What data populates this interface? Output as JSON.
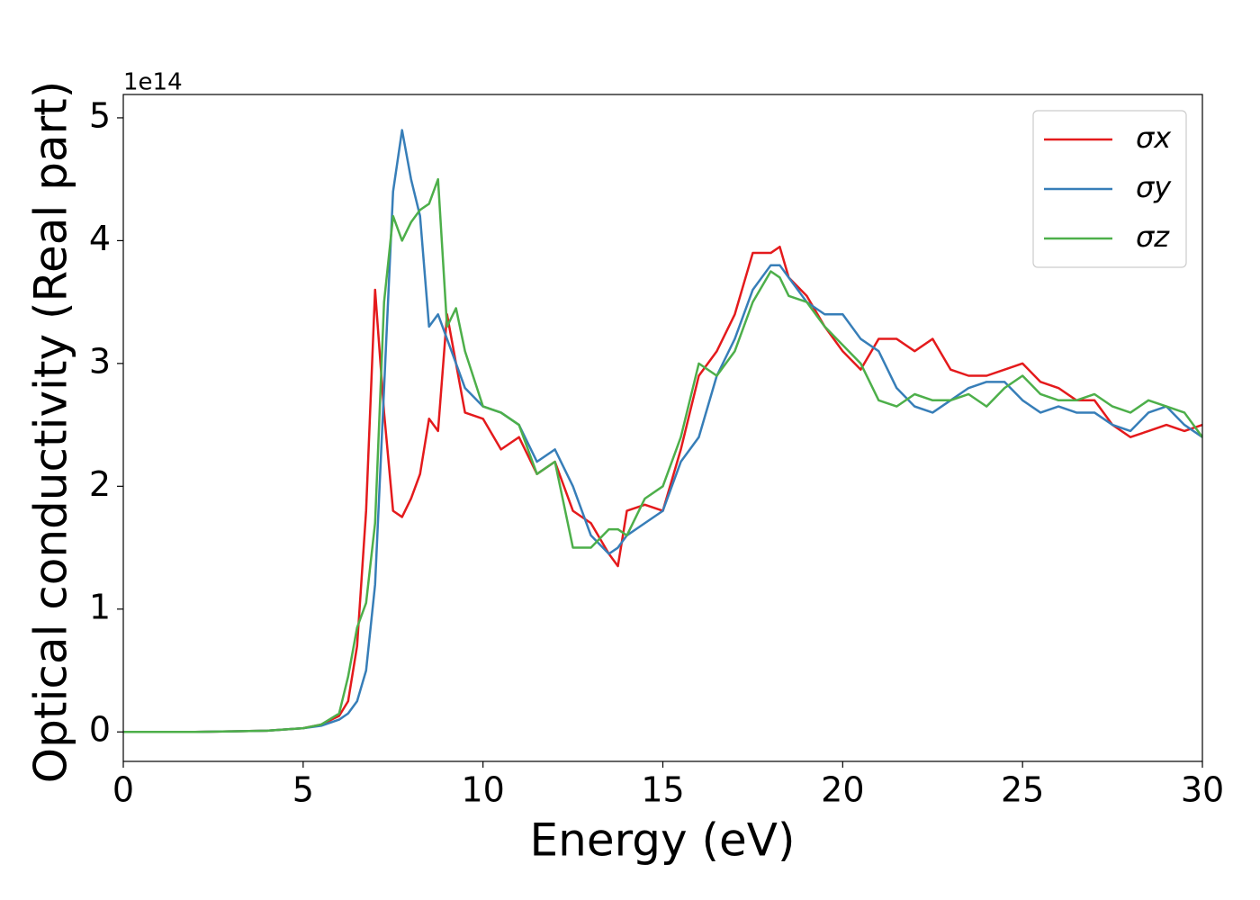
{
  "chart_data": {
    "type": "line",
    "xlabel": "Energy (eV)",
    "ylabel": "Optical conductivity (Real part)",
    "y_offset_label": "1e14",
    "x": [
      0,
      1,
      2,
      3,
      4,
      5,
      5.5,
      6,
      6.25,
      6.5,
      6.75,
      7,
      7.25,
      7.5,
      7.75,
      8,
      8.25,
      8.5,
      8.75,
      9,
      9.25,
      9.5,
      10,
      10.5,
      11,
      11.5,
      12,
      12.5,
      13,
      13.5,
      13.75,
      14,
      14.5,
      15,
      15.5,
      16,
      16.5,
      17,
      17.5,
      18,
      18.25,
      18.5,
      19,
      19.5,
      20,
      20.5,
      21,
      21.5,
      22,
      22.5,
      23,
      23.5,
      24,
      24.5,
      25,
      25.5,
      26,
      26.5,
      27,
      27.5,
      28,
      28.5,
      29,
      29.5,
      30
    ],
    "series": [
      {
        "name": "σx",
        "color": "#e41a1c",
        "values": [
          0,
          0,
          0,
          0.005,
          0.01,
          0.03,
          0.06,
          0.13,
          0.25,
          0.7,
          1.8,
          3.6,
          2.6,
          1.8,
          1.75,
          1.9,
          2.1,
          2.55,
          2.45,
          3.4,
          3.0,
          2.6,
          2.55,
          2.3,
          2.4,
          2.1,
          2.2,
          1.8,
          1.7,
          1.45,
          1.35,
          1.8,
          1.85,
          1.8,
          2.3,
          2.9,
          3.1,
          3.4,
          3.9,
          3.9,
          3.95,
          3.7,
          3.55,
          3.3,
          3.1,
          2.95,
          3.2,
          3.2,
          3.1,
          3.2,
          2.95,
          2.9,
          2.9,
          2.95,
          3.0,
          2.85,
          2.8,
          2.7,
          2.7,
          2.5,
          2.4,
          2.45,
          2.5,
          2.45,
          2.5
        ]
      },
      {
        "name": "σy",
        "color": "#377eb8",
        "values": [
          0,
          0,
          0,
          0.005,
          0.01,
          0.03,
          0.05,
          0.1,
          0.15,
          0.25,
          0.5,
          1.2,
          2.8,
          4.4,
          4.9,
          4.5,
          4.2,
          3.3,
          3.4,
          3.2,
          3.0,
          2.8,
          2.65,
          2.6,
          2.5,
          2.2,
          2.3,
          2.0,
          1.6,
          1.45,
          1.5,
          1.6,
          1.7,
          1.8,
          2.2,
          2.4,
          2.9,
          3.2,
          3.6,
          3.8,
          3.8,
          3.7,
          3.5,
          3.4,
          3.4,
          3.2,
          3.1,
          2.8,
          2.65,
          2.6,
          2.7,
          2.8,
          2.85,
          2.85,
          2.7,
          2.6,
          2.65,
          2.6,
          2.6,
          2.5,
          2.45,
          2.6,
          2.65,
          2.5,
          2.4
        ]
      },
      {
        "name": "σz",
        "color": "#4daf4a",
        "values": [
          0,
          0,
          0,
          0.005,
          0.01,
          0.03,
          0.06,
          0.15,
          0.45,
          0.85,
          1.05,
          1.7,
          3.5,
          4.2,
          4.0,
          4.15,
          4.25,
          4.3,
          4.5,
          3.3,
          3.45,
          3.1,
          2.65,
          2.6,
          2.5,
          2.1,
          2.2,
          1.5,
          1.5,
          1.65,
          1.65,
          1.6,
          1.9,
          2.0,
          2.4,
          3.0,
          2.9,
          3.1,
          3.5,
          3.75,
          3.7,
          3.55,
          3.5,
          3.3,
          3.15,
          3.0,
          2.7,
          2.65,
          2.75,
          2.7,
          2.7,
          2.75,
          2.65,
          2.8,
          2.9,
          2.75,
          2.7,
          2.7,
          2.75,
          2.65,
          2.6,
          2.7,
          2.65,
          2.6,
          2.4
        ]
      }
    ],
    "xlim": [
      0,
      30
    ],
    "xticks": [
      0,
      5,
      10,
      15,
      20,
      25,
      30
    ],
    "ylim": [
      -0.24,
      5.19
    ],
    "yticks": [
      0,
      1,
      2,
      3,
      4,
      5
    ],
    "grid": false,
    "legend": "upper right"
  }
}
